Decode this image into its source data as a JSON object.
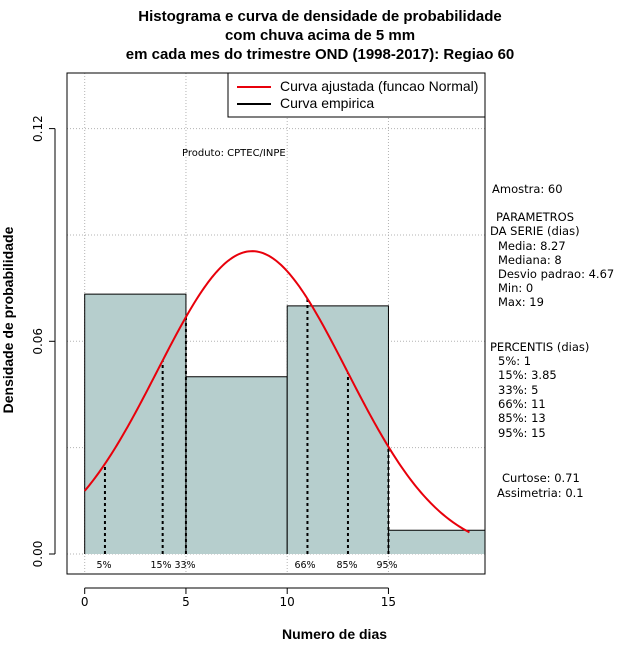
{
  "title_lines": [
    "Histograma e curva de densidade de probabilidade",
    "com chuva acima de 5 mm",
    "em cada mes do trimestre OND (1998-2017): Regiao 60"
  ],
  "watermark": "Produto: CPTEC/INPE",
  "legend": {
    "fitted_label": "Curva ajustada (funcao Normal)",
    "empirical_label": "Curva empirica"
  },
  "stats": {
    "sample": "Amostra: 60",
    "params_title_1": "PARAMETROS",
    "params_title_2": "DA SERIE (dias)",
    "media": "Media: 8.27",
    "mediana": "Mediana: 8",
    "desvio": "Desvio padrao: 4.67",
    "min": "Min: 0",
    "max": "Max: 19",
    "percentis_title": "PERCENTIS (dias)",
    "p5": "5%: 1",
    "p15": "15%: 3.85",
    "p33": "33%: 5",
    "p66": "66%: 11",
    "p85": "85%: 13",
    "p95": "95%: 15",
    "curtose": "Curtose: 0.71",
    "assimetria": "Assimetria: 0.1"
  },
  "colors": {
    "bar_fill": "#b6cecd",
    "fitted_curve": "#e8000b",
    "grid": "#b3b3b3"
  },
  "chart_data": {
    "type": "bar",
    "title": "Histograma e curva de densidade de probabilidade com chuva acima de 5 mm em cada mes do trimestre OND (1998-2017): Regiao 60",
    "xlabel": "Numero de dias",
    "ylabel": "Densidade de probabilidade",
    "xlim": [
      -0.5,
      19.5
    ],
    "ylim": [
      0,
      0.13
    ],
    "x_ticks": [
      0,
      5,
      10,
      15
    ],
    "y_ticks": [
      0.0,
      0.06,
      0.12
    ],
    "y_tick_labels": [
      "0.00",
      "0.06",
      "0.12"
    ],
    "grid": true,
    "legend_position": "top-right",
    "histogram": {
      "bins": [
        [
          0,
          5
        ],
        [
          5,
          10
        ],
        [
          10,
          15
        ],
        [
          15,
          20
        ]
      ],
      "density": [
        0.0733,
        0.05,
        0.07,
        0.0067
      ]
    },
    "normal_fit": {
      "mean": 8.27,
      "sd": 4.67,
      "x_range": [
        0,
        19
      ]
    },
    "percentile_lines": [
      {
        "label": "5%",
        "x": 1
      },
      {
        "label": "15%",
        "x": 3.85
      },
      {
        "label": "33%",
        "x": 5
      },
      {
        "label": "66%",
        "x": 11
      },
      {
        "label": "85%",
        "x": 13
      },
      {
        "label": "95%",
        "x": 15
      }
    ]
  }
}
